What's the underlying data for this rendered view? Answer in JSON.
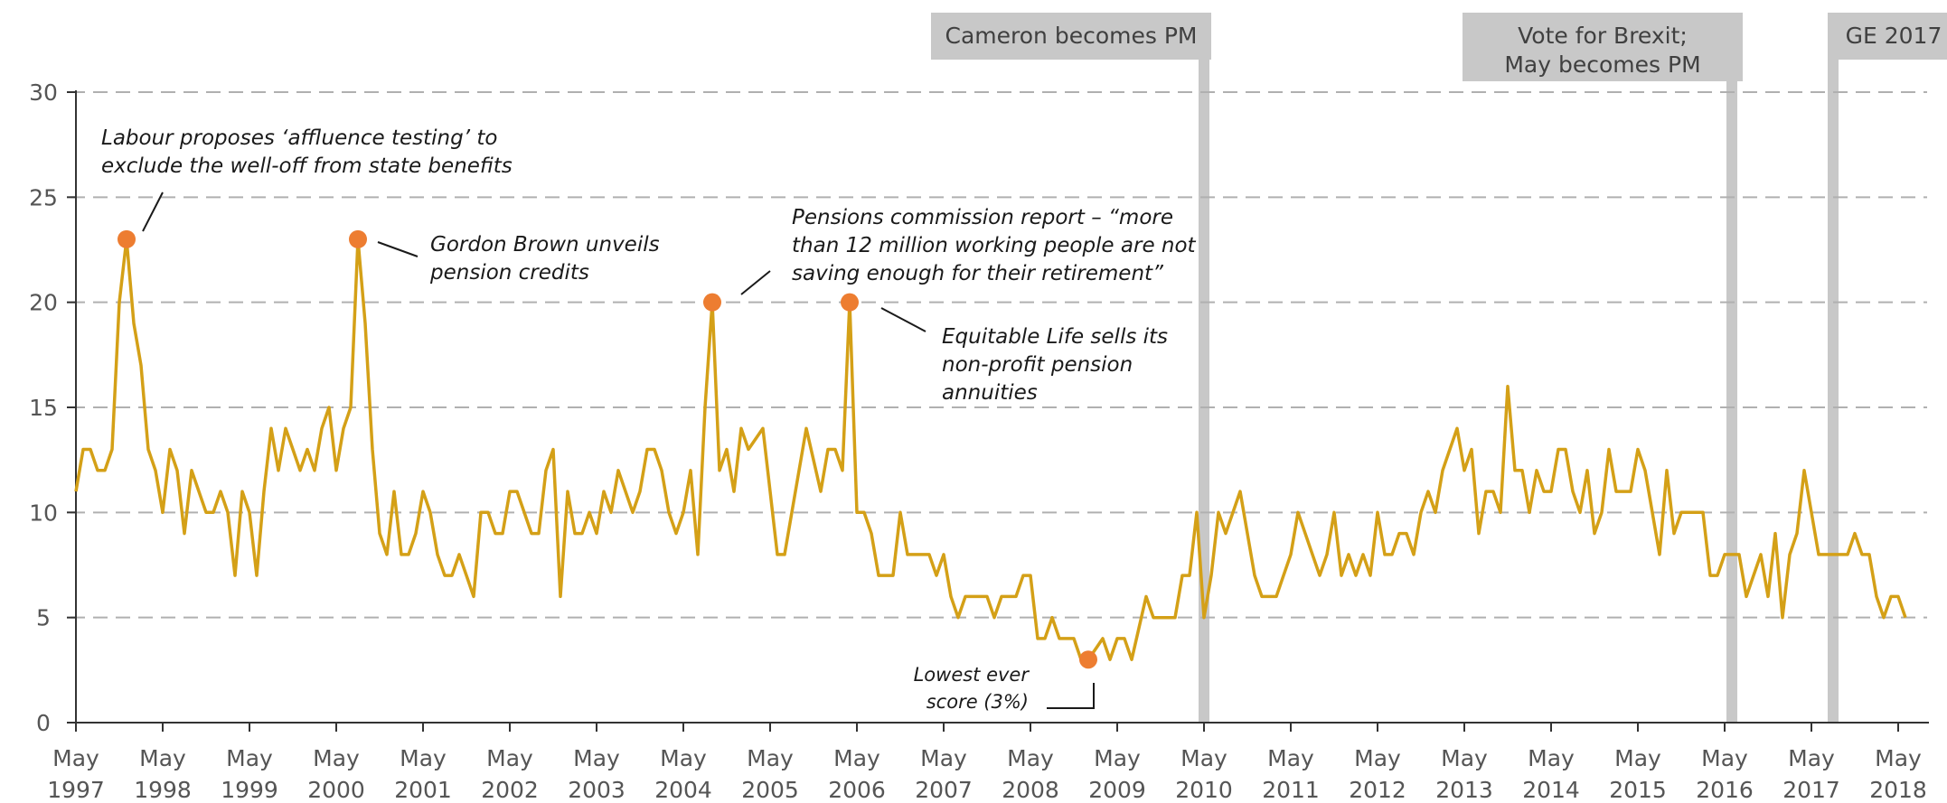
{
  "chart_data": {
    "type": "line",
    "title": "",
    "xlabel": "",
    "ylabel": "",
    "ylim": [
      0,
      30
    ],
    "y_ticks": [
      0,
      5,
      10,
      15,
      20,
      25,
      30
    ],
    "grid": "horizontal dashed",
    "line_color": "#d4a017",
    "marker_color": "#ed7d31",
    "band_color": "#c8c8c8",
    "x_ticks": [
      {
        "label_top": "May",
        "label_bottom": "1997"
      },
      {
        "label_top": "May",
        "label_bottom": "1998"
      },
      {
        "label_top": "May",
        "label_bottom": "1999"
      },
      {
        "label_top": "May",
        "label_bottom": "2000"
      },
      {
        "label_top": "May",
        "label_bottom": "2001"
      },
      {
        "label_top": "May",
        "label_bottom": "2002"
      },
      {
        "label_top": "May",
        "label_bottom": "2003"
      },
      {
        "label_top": "May",
        "label_bottom": "2004"
      },
      {
        "label_top": "May",
        "label_bottom": "2005"
      },
      {
        "label_top": "May",
        "label_bottom": "2006"
      },
      {
        "label_top": "May",
        "label_bottom": "2007"
      },
      {
        "label_top": "May",
        "label_bottom": "2008"
      },
      {
        "label_top": "May",
        "label_bottom": "2009"
      },
      {
        "label_top": "May",
        "label_bottom": "2010"
      },
      {
        "label_top": "May",
        "label_bottom": "2011"
      },
      {
        "label_top": "May",
        "label_bottom": "2012"
      },
      {
        "label_top": "May",
        "label_bottom": "2013"
      },
      {
        "label_top": "May",
        "label_bottom": "2014"
      },
      {
        "label_top": "May",
        "label_bottom": "2015"
      },
      {
        "label_top": "May",
        "label_bottom": "2016"
      },
      {
        "label_top": "May",
        "label_bottom": "2017"
      },
      {
        "label_top": "May",
        "label_bottom": "2018"
      }
    ],
    "series": [
      {
        "values": [
          11,
          13,
          13,
          12,
          12,
          13,
          20,
          23,
          19,
          17,
          13,
          12,
          10,
          13,
          12,
          9,
          12,
          11,
          10,
          10,
          11,
          10,
          7,
          11,
          10,
          7,
          11,
          14,
          12,
          14,
          13,
          12,
          13,
          12,
          14,
          15,
          12,
          14,
          15,
          23,
          19,
          13,
          9,
          8,
          11,
          8,
          8,
          9,
          11,
          10,
          8,
          7,
          7,
          8,
          7,
          6,
          10,
          10,
          9,
          9,
          11,
          11,
          10,
          9,
          9,
          12,
          13,
          6,
          11,
          9,
          9,
          10,
          9,
          11,
          10,
          12,
          11,
          10,
          11,
          13,
          13,
          12,
          10,
          9,
          10,
          12,
          8,
          15,
          20,
          12,
          13,
          11,
          14,
          13,
          13.5,
          14,
          11,
          8,
          8,
          10,
          12,
          14,
          12.5,
          11,
          13,
          13,
          12,
          20,
          10,
          10,
          9,
          7,
          7,
          7,
          10,
          8,
          8,
          8,
          8,
          7,
          8,
          6,
          5,
          6,
          6,
          6,
          6,
          5,
          6,
          6,
          6,
          7,
          7,
          4,
          4,
          5,
          4,
          4,
          4,
          3,
          3,
          3.5,
          4,
          3,
          4,
          4,
          3,
          4.5,
          6,
          5,
          5,
          5,
          5,
          7,
          7,
          10,
          5,
          7,
          10,
          9,
          10,
          11,
          9,
          7,
          6,
          6,
          6,
          7,
          8,
          10,
          9,
          8,
          7,
          8,
          10,
          7,
          8,
          7,
          8,
          7,
          10,
          8,
          8,
          9,
          9,
          8,
          10,
          11,
          10,
          12,
          13,
          14,
          12,
          13,
          9,
          11,
          11,
          10,
          16,
          12,
          12,
          10,
          12,
          11,
          11,
          13,
          13,
          11,
          10,
          12,
          9,
          10,
          13,
          11,
          11,
          11,
          13,
          12,
          10,
          8,
          12,
          9,
          10,
          10,
          10,
          10,
          7,
          7,
          8,
          8,
          8,
          6,
          7,
          8,
          6,
          9,
          5,
          8,
          9,
          12,
          10,
          8,
          8,
          8,
          8,
          8,
          9,
          8,
          8,
          6,
          5,
          6,
          6,
          5
        ]
      }
    ],
    "event_bands": [
      {
        "label_lines": [
          "Cameron becomes PM"
        ],
        "month_index": 156
      },
      {
        "label_lines": [
          "Vote for Brexit;",
          "May becomes PM"
        ],
        "month_index": 229
      },
      {
        "label_lines": [
          "GE 2017"
        ],
        "month_index": 243
      }
    ],
    "annotations": [
      {
        "month_index": 7,
        "value": 23,
        "lines": [
          "Labour proposes ‘affluence testing’ to",
          "exclude the well-off from state benefits"
        ]
      },
      {
        "month_index": 39,
        "value": 23,
        "lines": [
          "Gordon Brown unveils",
          "pension credits"
        ]
      },
      {
        "month_index": 88,
        "value": 20,
        "lines": [
          "Pensions commission report – “more",
          "than 12 million working people are not",
          "saving enough for their retirement”"
        ]
      },
      {
        "month_index": 107,
        "value": 20,
        "lines": [
          "Equitable Life sells its",
          "non-profit pension",
          "annuities"
        ]
      },
      {
        "month_index": 140,
        "value": 3,
        "lines": [
          "Lowest ever",
          "score (3%)"
        ]
      }
    ]
  }
}
